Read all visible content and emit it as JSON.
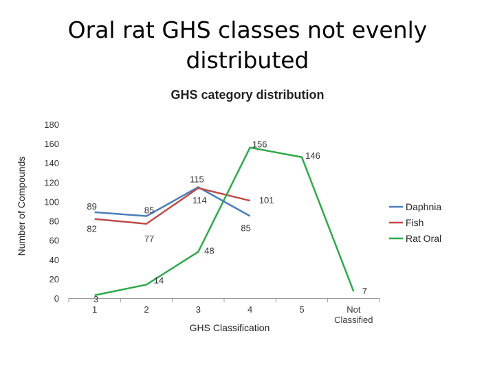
{
  "slide": {
    "title": "Oral rat GHS classes not evenly distributed"
  },
  "chart_data": {
    "type": "line",
    "title": "GHS category distribution",
    "xlabel": "GHS  Classification",
    "ylabel": "Number of Compounds",
    "categories": [
      "1",
      "2",
      "3",
      "4",
      "5",
      "Not Classified"
    ],
    "ylim": [
      0,
      180
    ],
    "yticks": [
      0,
      20,
      40,
      60,
      80,
      100,
      120,
      140,
      160,
      180
    ],
    "grid": false,
    "legend_position": "right",
    "series": [
      {
        "name": "Daphnia",
        "color": "#4a7ebb",
        "values": [
          89,
          85,
          115,
          85,
          null,
          null
        ]
      },
      {
        "name": "Fish",
        "color": "#be4b48",
        "values": [
          82,
          77,
          114,
          101,
          null,
          null
        ]
      },
      {
        "name": "Rat Oral",
        "color": "#2ea84a",
        "values": [
          3,
          14,
          48,
          156,
          146,
          7
        ]
      }
    ]
  }
}
